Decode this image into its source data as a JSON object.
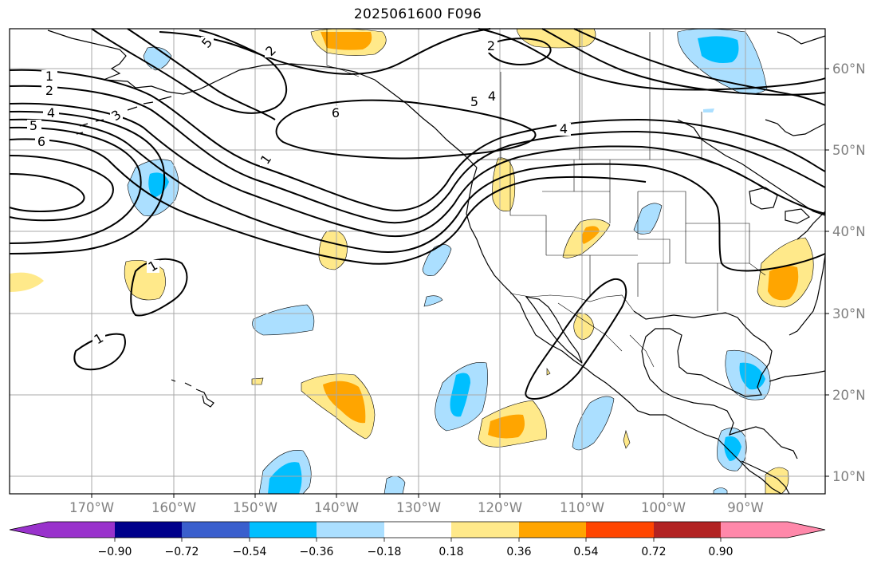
{
  "title": "2025061600 F096",
  "colors": {
    "pos1": "#ffe98a",
    "pos2": "#ffa500",
    "neg1": "#abdfff",
    "neg2": "#00bfff",
    "grid": "#a9a9a9",
    "contour": "#000000",
    "coast": "#000000"
  },
  "lon_labels": [
    "170°W",
    "160°W",
    "150°W",
    "140°W",
    "130°W",
    "120°W",
    "110°W",
    "100°W",
    "90°W"
  ],
  "lat_labels": [
    "60°N",
    "50°N",
    "40°N",
    "30°N",
    "20°N",
    "10°N"
  ],
  "colorbar": {
    "ticks": [
      "−0.90",
      "−0.72",
      "−0.54",
      "−0.36",
      "−0.18",
      "0.18",
      "0.36",
      "0.54",
      "0.72",
      "0.90"
    ],
    "colors": [
      "#9932cc",
      "#00008b",
      "#3a5fcd",
      "#00bfff",
      "#abdfff",
      "#ffffff",
      "#ffe98a",
      "#ffa500",
      "#ff4500",
      "#b22222",
      "#ff88aa"
    ]
  },
  "contour_labels": [
    "1",
    "2",
    "4",
    "5",
    "6",
    "3",
    "5",
    "2",
    "2",
    "6",
    "5",
    "4",
    "4",
    "1",
    "1",
    "1"
  ]
}
